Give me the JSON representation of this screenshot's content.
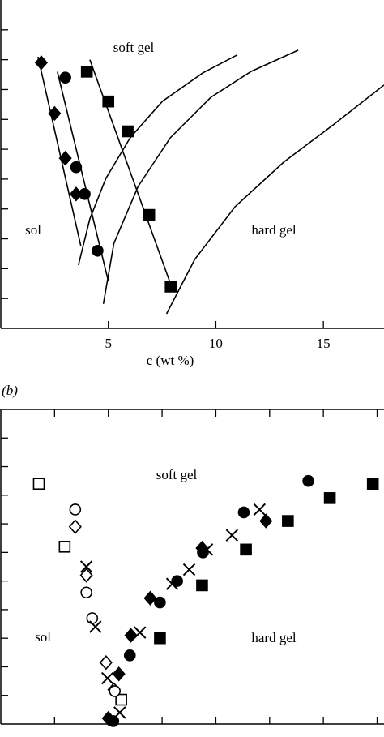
{
  "chart_data": [
    {
      "type": "scatter",
      "xlim": [
        0,
        17.82
      ],
      "ylim": [
        0,
        11
      ],
      "xticks": [
        5,
        10,
        15
      ],
      "yticks": [
        1,
        2,
        3,
        4,
        5,
        6,
        7,
        8,
        9,
        10
      ],
      "xlabel": "c (wt %)",
      "annotations": [
        "soft gel",
        "sol",
        "hard gel"
      ],
      "series": [
        {
          "marker": "diamond",
          "filled": true,
          "color": "#000",
          "x": [
            1.88,
            2.5,
            3.0,
            3.5
          ],
          "values": [
            8.9,
            7.2,
            5.7,
            4.5
          ]
        },
        {
          "marker": "circle",
          "filled": true,
          "color": "#000",
          "x": [
            3.0,
            3.5,
            3.9,
            4.5
          ],
          "values": [
            8.4,
            5.4,
            4.5,
            2.6
          ]
        },
        {
          "marker": "square",
          "filled": true,
          "color": "#000",
          "x": [
            4.0,
            5.0,
            5.9,
            6.9,
            7.9
          ],
          "values": [
            8.6,
            7.6,
            6.6,
            3.8,
            1.4
          ]
        }
      ],
      "lines": [
        {
          "x": [
            1.73,
            3.72
          ],
          "values": [
            9.1,
            2.77
          ]
        },
        {
          "x": [
            2.63,
            5.0
          ],
          "values": [
            8.6,
            1.58
          ]
        },
        {
          "x": [
            4.14,
            8.0
          ],
          "values": [
            9.0,
            1.28
          ]
        },
        {
          "x": [
            3.61,
            4.14,
            4.89,
            6.02,
            7.52,
            9.4,
            11.0
          ],
          "values": [
            2.12,
            3.67,
            5.03,
            6.39,
            7.61,
            8.56,
            9.16
          ]
        },
        {
          "x": [
            4.77,
            5.26,
            6.39,
            7.89,
            9.77,
            11.65,
            13.83
          ],
          "values": [
            0.82,
            2.85,
            4.76,
            6.39,
            7.74,
            8.61,
            9.32
          ]
        },
        {
          "x": [
            7.71,
            9.02,
            10.9,
            13.16,
            15.41,
            17.82
          ],
          "values": [
            0.49,
            2.31,
            4.08,
            5.57,
            6.79,
            8.15
          ]
        }
      ]
    },
    {
      "type": "scatter",
      "panel_label": "(b)",
      "xlim": [
        0,
        17.82
      ],
      "ylim": [
        0,
        11
      ],
      "xticks": [
        2.5,
        5,
        7.5,
        10,
        12.5,
        15,
        17.5
      ],
      "yticks": [
        1,
        2,
        3,
        4,
        5,
        6,
        7,
        8,
        9,
        10
      ],
      "annotations": [
        "soft gel",
        "sol",
        "hard gel"
      ],
      "series": [
        {
          "marker": "square",
          "filled": false,
          "color": "#000",
          "x": [
            1.77,
            2.97,
            5.6
          ],
          "values": [
            8.4,
            6.2,
            0.85
          ]
        },
        {
          "marker": "diamond",
          "filled": false,
          "color": "#000",
          "x": [
            3.46,
            3.98,
            4.89,
            5.26
          ],
          "values": [
            6.9,
            5.2,
            2.15,
            1.2
          ]
        },
        {
          "marker": "circle",
          "filled": false,
          "color": "#000",
          "x": [
            3.46,
            3.98,
            4.25,
            5.3
          ],
          "values": [
            7.5,
            4.6,
            3.7,
            1.15
          ]
        },
        {
          "marker": "cross",
          "filled": false,
          "color": "#000",
          "x": [
            3.98,
            4.4,
            4.96,
            5.53,
            6.47,
            7.97,
            8.76,
            9.59,
            10.75,
            12.03
          ],
          "values": [
            5.5,
            3.4,
            1.6,
            0.4,
            3.2,
            4.9,
            5.4,
            6.1,
            6.6,
            7.5
          ]
        },
        {
          "marker": "diamond",
          "filled": true,
          "color": "#000",
          "x": [
            5.0,
            5.49,
            6.05,
            6.95,
            9.36,
            12.33
          ],
          "values": [
            0.2,
            1.75,
            3.1,
            4.4,
            6.15,
            7.1
          ]
        },
        {
          "marker": "circle",
          "filled": true,
          "color": "#000",
          "x": [
            5.23,
            6.0,
            7.4,
            8.2,
            9.4,
            11.3,
            14.3
          ],
          "values": [
            0.1,
            2.4,
            4.25,
            5.0,
            6.0,
            7.4,
            8.5
          ]
        },
        {
          "marker": "square",
          "filled": true,
          "color": "#000",
          "x": [
            7.4,
            9.36,
            11.4,
            13.35,
            15.3,
            17.3
          ],
          "values": [
            3.0,
            4.85,
            6.1,
            7.1,
            7.9,
            8.4
          ]
        }
      ]
    }
  ]
}
